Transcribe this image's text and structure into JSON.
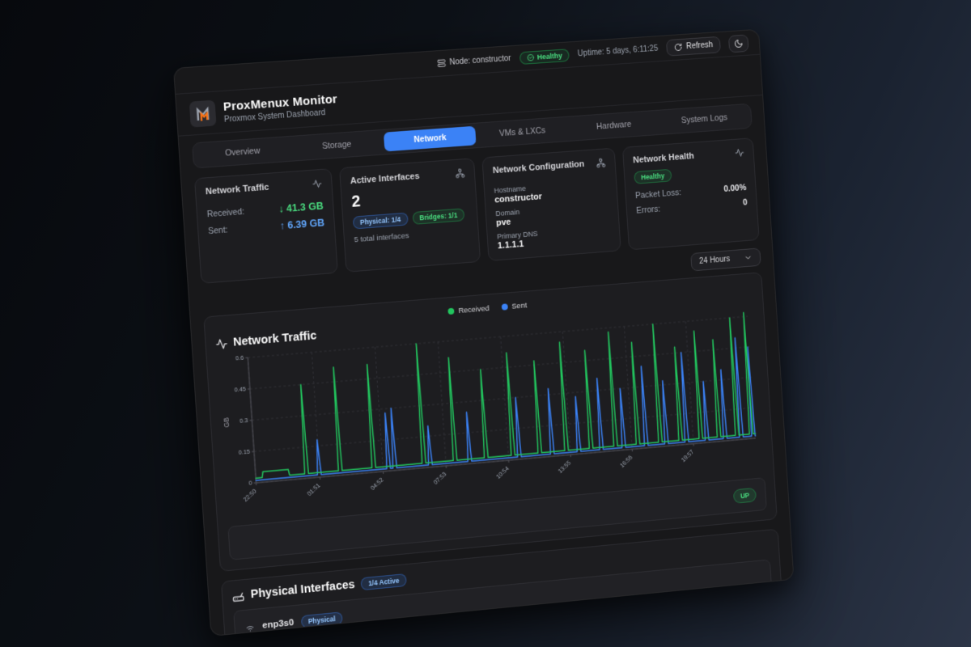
{
  "topbar": {
    "node": "Node: constructor",
    "health_badge": "Healthy",
    "uptime": "Uptime: 5 days, 6:11:25",
    "refresh_label": "Refresh"
  },
  "header": {
    "title": "ProxMenux Monitor",
    "subtitle": "Proxmox System Dashboard"
  },
  "tabs": [
    {
      "label": "Overview"
    },
    {
      "label": "Storage"
    },
    {
      "label": "Network",
      "active": true
    },
    {
      "label": "VMs & LXCs"
    },
    {
      "label": "Hardware"
    },
    {
      "label": "System Logs"
    }
  ],
  "cards": {
    "traffic": {
      "title": "Network Traffic",
      "received_label": "Received:",
      "received_value": "↓ 41.3 GB",
      "sent_label": "Sent:",
      "sent_value": "↑ 6.39 GB"
    },
    "interfaces": {
      "title": "Active Interfaces",
      "count": "2",
      "physical_badge": "Physical: 1/4",
      "bridges_badge": "Bridges: 1/1",
      "total_note": "5 total interfaces"
    },
    "config": {
      "title": "Network Configuration",
      "hostname_label": "Hostname",
      "hostname": "constructor",
      "domain_label": "Domain",
      "domain": "pve",
      "dns_label": "Primary DNS",
      "dns": "1.1.1.1"
    },
    "health": {
      "title": "Network Health",
      "status": "Healthy",
      "packet_loss_label": "Packet Loss:",
      "packet_loss": "0.00%",
      "errors_label": "Errors:",
      "errors": "0"
    }
  },
  "range_select": {
    "value": "24 Hours"
  },
  "traffic_panel": {
    "title": "Network Traffic",
    "status_badge": "UP"
  },
  "physical": {
    "title": "Physical Interfaces",
    "active_badge": "1/4 Active",
    "interface": {
      "name": "enp3s0",
      "type_badge": "Physical"
    }
  },
  "colors": {
    "accent_blue": "#3b82f6",
    "received_green": "#22c55e",
    "sent_blue": "#3b82f6",
    "healthy_green": "#4ade80",
    "brand_orange": "#f97316"
  },
  "chart_data": {
    "type": "line",
    "title": "Network Traffic",
    "ylabel": "GB",
    "ylim": [
      0,
      0.6
    ],
    "yticks": [
      0,
      0.15,
      0.3,
      0.45,
      0.6
    ],
    "total_hours": 24.2,
    "xtick_hours": [
      0,
      3.02,
      6.03,
      9.05,
      12.07,
      15.08,
      18.1,
      21.12
    ],
    "xticklabels": [
      "22:50",
      "01:51",
      "04:52",
      "07:53",
      "10:54",
      "13:55",
      "16:56",
      "19:57"
    ],
    "grid": true,
    "legend_position": "top-center",
    "series": [
      {
        "name": "Received",
        "color": "#22c55e",
        "baseline": 0.022,
        "bumps": [
          [
            0.3,
            1.6,
            0.05
          ]
        ],
        "spikes": [
          [
            2.4,
            0.45
          ],
          [
            4.0,
            0.52
          ],
          [
            5.6,
            0.52
          ],
          [
            8.0,
            0.6
          ],
          [
            9.5,
            0.52
          ],
          [
            11.0,
            0.45
          ],
          [
            12.3,
            0.52
          ],
          [
            13.6,
            0.47
          ],
          [
            14.9,
            0.55
          ],
          [
            16.1,
            0.5
          ],
          [
            17.3,
            0.58
          ],
          [
            18.4,
            0.52
          ],
          [
            19.5,
            0.6
          ],
          [
            20.5,
            0.48
          ],
          [
            21.5,
            0.55
          ],
          [
            22.4,
            0.5
          ],
          [
            23.3,
            0.6
          ],
          [
            24.0,
            0.62
          ]
        ]
      },
      {
        "name": "Sent",
        "color": "#3b82f6",
        "baseline": 0.012,
        "bumps": [],
        "spikes": [
          [
            3.0,
            0.18
          ],
          [
            6.3,
            0.28
          ],
          [
            6.6,
            0.3
          ],
          [
            8.3,
            0.2
          ],
          [
            10.2,
            0.25
          ],
          [
            12.6,
            0.3
          ],
          [
            14.2,
            0.33
          ],
          [
            15.5,
            0.28
          ],
          [
            16.6,
            0.36
          ],
          [
            17.7,
            0.3
          ],
          [
            18.8,
            0.4
          ],
          [
            19.8,
            0.32
          ],
          [
            20.8,
            0.45
          ],
          [
            21.8,
            0.3
          ],
          [
            22.7,
            0.35
          ],
          [
            23.5,
            0.5
          ],
          [
            24.1,
            0.45
          ]
        ]
      }
    ]
  }
}
